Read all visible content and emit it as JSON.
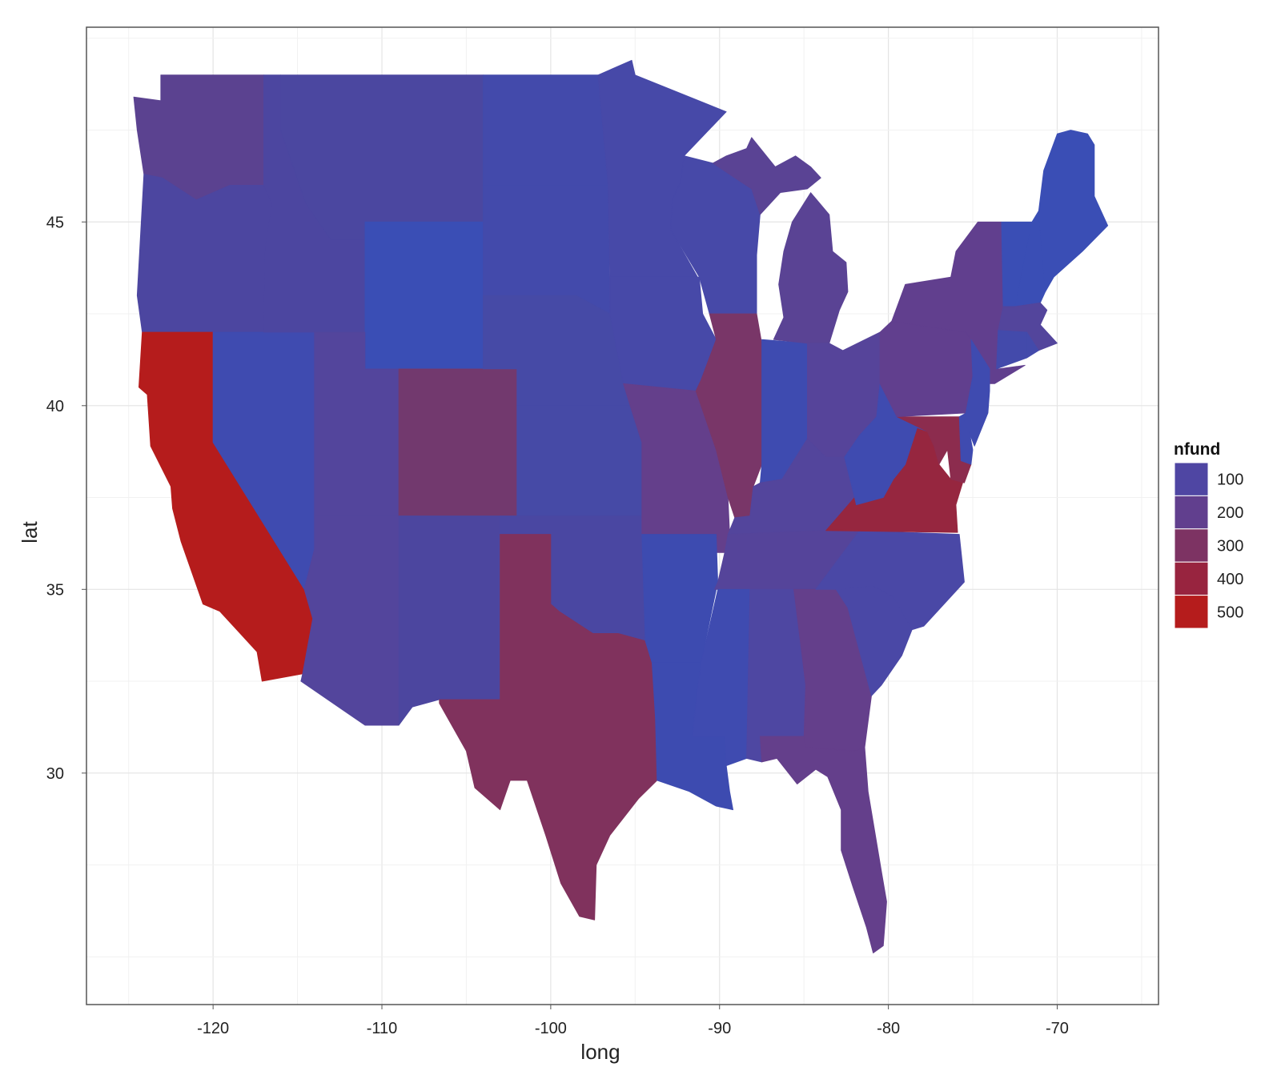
{
  "chart_data": {
    "type": "choropleth",
    "xlabel": "long",
    "ylabel": "lat",
    "xlim": [
      -127.5,
      -64
    ],
    "ylim": [
      23.7,
      50.3
    ],
    "x_ticks": [
      -120,
      -110,
      -100,
      -90,
      -80,
      -70
    ],
    "y_ticks": [
      30,
      35,
      40,
      45
    ],
    "grid": true,
    "legend": {
      "title": "nfund",
      "placement": "right",
      "entries": [
        {
          "label": "100",
          "value": 100,
          "color": "#4f46a3"
        },
        {
          "label": "200",
          "value": 200,
          "color": "#613f8e"
        },
        {
          "label": "300",
          "value": 300,
          "color": "#7d3363"
        },
        {
          "label": "400",
          "value": 400,
          "color": "#98243f"
        },
        {
          "label": "500",
          "value": 500,
          "color": "#b51c1c"
        }
      ]
    },
    "states": [
      {
        "name": "Washington",
        "value": 190,
        "color": "#5b4290"
      },
      {
        "name": "Oregon",
        "value": 90,
        "color": "#4c46a0"
      },
      {
        "name": "California",
        "value": 500,
        "color": "#b51c1c"
      },
      {
        "name": "Nevada",
        "value": 40,
        "color": "#3f4bb0"
      },
      {
        "name": "Idaho",
        "value": 90,
        "color": "#4c46a0"
      },
      {
        "name": "Montana",
        "value": 90,
        "color": "#4b47a0"
      },
      {
        "name": "Wyoming",
        "value": 20,
        "color": "#3a4eb5"
      },
      {
        "name": "Utah",
        "value": 100,
        "color": "#53459c"
      },
      {
        "name": "Arizona",
        "value": 100,
        "color": "#53459c"
      },
      {
        "name": "Colorado",
        "value": 250,
        "color": "#72396e"
      },
      {
        "name": "New Mexico",
        "value": 90,
        "color": "#4c469f"
      },
      {
        "name": "North Dakota",
        "value": 60,
        "color": "#434aab"
      },
      {
        "name": "South Dakota",
        "value": 60,
        "color": "#434aab"
      },
      {
        "name": "Nebraska",
        "value": 70,
        "color": "#464aa6"
      },
      {
        "name": "Kansas",
        "value": 70,
        "color": "#464aa6"
      },
      {
        "name": "Oklahoma",
        "value": 80,
        "color": "#4a47a2"
      },
      {
        "name": "Texas",
        "value": 290,
        "color": "#80325d"
      },
      {
        "name": "Minnesota",
        "value": 70,
        "color": "#4749a8"
      },
      {
        "name": "Iowa",
        "value": 70,
        "color": "#4749a8"
      },
      {
        "name": "Missouri",
        "value": 180,
        "color": "#643f8b"
      },
      {
        "name": "Arkansas",
        "value": 30,
        "color": "#3d4bb0"
      },
      {
        "name": "Louisiana",
        "value": 30,
        "color": "#3d4bb0"
      },
      {
        "name": "Wisconsin",
        "value": 70,
        "color": "#4749a8"
      },
      {
        "name": "Illinois",
        "value": 270,
        "color": "#793668"
      },
      {
        "name": "Indiana",
        "value": 40,
        "color": "#3e4bb0"
      },
      {
        "name": "Michigan",
        "value": 150,
        "color": "#5a4394"
      },
      {
        "name": "Ohio",
        "value": 110,
        "color": "#56449a"
      },
      {
        "name": "Kentucky",
        "value": 100,
        "color": "#53459c"
      },
      {
        "name": "Tennessee",
        "value": 110,
        "color": "#55449a"
      },
      {
        "name": "Mississippi",
        "value": 30,
        "color": "#3f4bb0"
      },
      {
        "name": "Alabama",
        "value": 90,
        "color": "#4e47a2"
      },
      {
        "name": "Georgia",
        "value": 180,
        "color": "#643f8b"
      },
      {
        "name": "Florida",
        "value": 190,
        "color": "#643f8b"
      },
      {
        "name": "South Carolina",
        "value": 70,
        "color": "#4a48a6"
      },
      {
        "name": "North Carolina",
        "value": 70,
        "color": "#4a48a6"
      },
      {
        "name": "Virginia",
        "value": 420,
        "color": "#96263f"
      },
      {
        "name": "West Virginia",
        "value": 30,
        "color": "#3f4bb0"
      },
      {
        "name": "Pennsylvania",
        "value": 170,
        "color": "#613f8e"
      },
      {
        "name": "New York",
        "value": 170,
        "color": "#613f8e"
      },
      {
        "name": "Maryland",
        "value": 360,
        "color": "#8c2c4e"
      },
      {
        "name": "Delaware",
        "value": 30,
        "color": "#3f4bb0"
      },
      {
        "name": "New Jersey",
        "value": 30,
        "color": "#3f4bb0"
      },
      {
        "name": "Connecticut",
        "value": 50,
        "color": "#434aab"
      },
      {
        "name": "Rhode Island",
        "value": 50,
        "color": "#434aab"
      },
      {
        "name": "Massachusetts",
        "value": 100,
        "color": "#53459c"
      },
      {
        "name": "Vermont",
        "value": 20,
        "color": "#3a4eb5"
      },
      {
        "name": "New Hampshire",
        "value": 20,
        "color": "#3a4eb5"
      },
      {
        "name": "Maine",
        "value": 20,
        "color": "#3a4eb5"
      }
    ]
  }
}
